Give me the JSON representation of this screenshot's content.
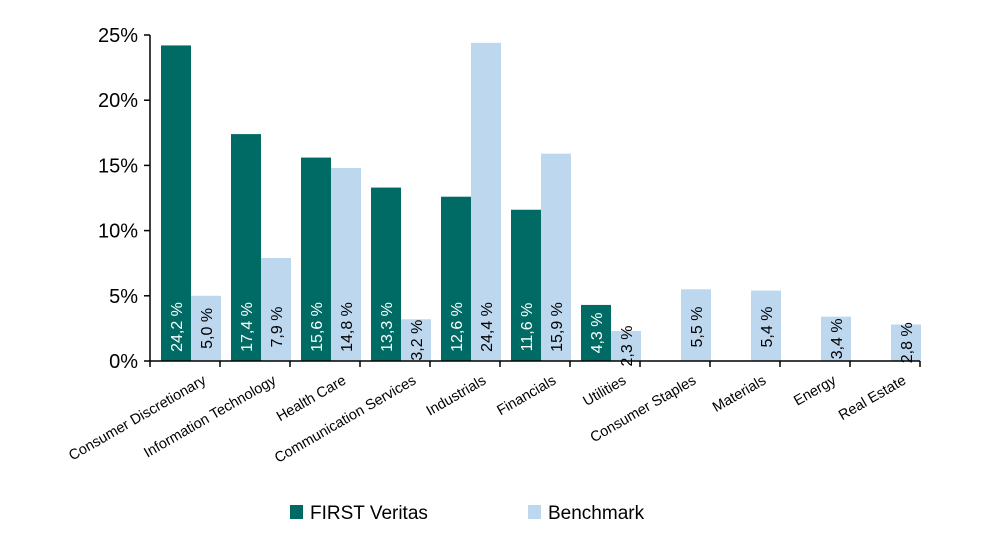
{
  "chart_data": {
    "type": "bar",
    "categories": [
      "Consumer Discretionary",
      "Information Technology",
      "Health Care",
      "Communication Services",
      "Industrials",
      "Financials",
      "Utilities",
      "Consumer Staples",
      "Materials",
      "Energy",
      "Real Estate"
    ],
    "series": [
      {
        "name": "FIRST Veritas",
        "color": "#006b64",
        "values": [
          24.2,
          17.4,
          15.6,
          13.3,
          12.6,
          11.6,
          4.3,
          null,
          null,
          null,
          null
        ],
        "labels": [
          "24,2 %",
          "17,4 %",
          "15,6 %",
          "13,3 %",
          "12,6 %",
          "11,6 %",
          "4,3 %",
          "",
          "",
          "",
          ""
        ]
      },
      {
        "name": "Benchmark",
        "color": "#bdd7ee",
        "values": [
          5.0,
          7.9,
          14.8,
          3.2,
          24.4,
          15.9,
          2.3,
          5.5,
          5.4,
          3.4,
          2.8
        ],
        "labels": [
          "5,0 %",
          "7,9 %",
          "14,8 %",
          "3,2 %",
          "24,4 %",
          "15,9 %",
          "2,3 %",
          "5,5 %",
          "5,4 %",
          "3,4 %",
          "2,8 %"
        ]
      }
    ],
    "ylim": [
      0,
      25
    ],
    "yticks": [
      0,
      5,
      10,
      15,
      20,
      25
    ],
    "ytick_labels": [
      "0%",
      "5%",
      "10%",
      "15%",
      "20%",
      "25%"
    ],
    "grid": false,
    "legend_position": "bottom",
    "title": "",
    "xlabel": "",
    "ylabel": ""
  }
}
